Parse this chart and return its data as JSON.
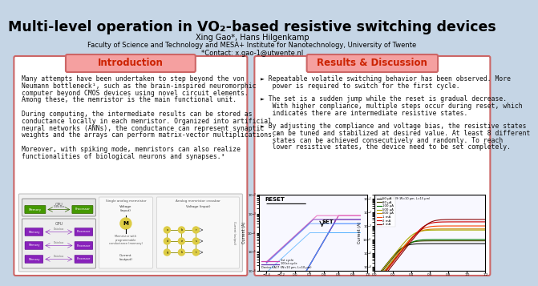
{
  "bg_color": "#c5d5e5",
  "title_line1": "Multi-level operation in VO",
  "title_sub": "2",
  "title_line2": "-based resistive switching devices",
  "authors": "Xing Gao*, Hans Hilgenkamp",
  "affiliation": "Faculty of Science and Technology and MESA+ Institute for Nanotechnology, University of Twente",
  "contact": "*Contact: x.gao-1@utwente.nl",
  "intro_title": "Introduction",
  "results_title": "Results & Discussion",
  "intro_text_para1": [
    "Many attempts have been undertaken to step beyond the von",
    "Neumann bottleneck¹, such as the brain-inspired neuromorphic",
    "computer beyond CMOS devices using novel circuit elements.",
    "Among these, the memristor is the main functional unit."
  ],
  "intro_text_para2": [
    "During computing, the intermediate results can be stored as",
    "conductance locally in each memristor. Organized into artificial",
    "neural networks (ANNs), the conductance can represent synaptic",
    "weights and the arrays can perform matrix-vector multiplications.²"
  ],
  "intro_text_para3": [
    "Moreover, with spiking mode, memristors can also realize",
    "functionalities of biological neurons and synapses.³"
  ],
  "results_bullet1_lines": [
    "► Repeatable volatile switching behavior has been observed. More",
    "   power is required to switch for the first cycle."
  ],
  "results_bullet2_lines": [
    "► The set is a sudden jump while the reset is gradual decrease.",
    "   With higher compliance, multiple steps occur during reset, which",
    "   indicates there are intermediate resistive states."
  ],
  "results_bullet3_lines": [
    "► By adjusting the compliance and voltage bias, the resistive states",
    "   can be tuned and stabilized at desired value. At least 8 different",
    "   states can be achieved consecutively and randomly. To reach",
    "   lower resistive states, the device need to be set completely."
  ],
  "panel_bg": "#ffffff",
  "intro_header_bg": "#f5a0a0",
  "results_header_bg": "#f5a0a0",
  "header_text_color": "#cc2200",
  "panel_border_color": "#cc6666",
  "title_color": "#000000",
  "body_text_color": "#111111",
  "graph1_label_reset": "RESET",
  "graph1_label_set": "SET",
  "graph1_caption": "Device 6A17 (W=10 μm, L=10 μm)",
  "graph1_legend1": "1st cycle",
  "graph1_legend2": "101st cycle",
  "graph2_caption": "Device 6409 (W=10 μm, L=15 μm)",
  "graph2_labels": [
    "50 μA",
    "80 μA",
    "100 μA",
    "500 μA",
    "600 μA",
    "1 mA",
    "2 mA",
    "3 mA"
  ],
  "graph2_colors": [
    "#111111",
    "#444400",
    "#007700",
    "#aaaa00",
    "#cc8800",
    "#ff4400",
    "#cc0000",
    "#880000"
  ]
}
